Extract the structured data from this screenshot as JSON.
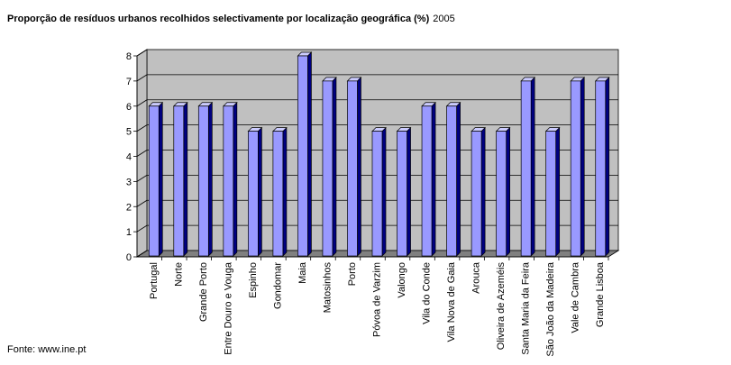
{
  "title": "Proporção de resíduos urbanos recolhidos selectivamente por localização geográfica (%)",
  "year": "2005",
  "source": "Fonte: www.ine.pt",
  "colors": {
    "bar_front": "#9999ff",
    "bar_side": "#000080",
    "bar_top": "#ccccff",
    "wall": "#c0c0c0",
    "floor": "#808080"
  },
  "chart_data": {
    "type": "bar",
    "title": "Proporção de resíduos urbanos recolhidos selectivamente por localização geográfica (%)",
    "subtitle": "2005",
    "xlabel": "",
    "ylabel": "",
    "ylim": [
      0,
      8
    ],
    "yticks": [
      "0",
      "1",
      "2",
      "3",
      "4",
      "5",
      "6",
      "7",
      "8"
    ],
    "grid": true,
    "categories": [
      "Portugal",
      "Norte",
      "Grande Porto",
      "Entre Douro e Vouga",
      "Espinho",
      "Gondomar",
      "Maia",
      "Matosinhos",
      "Porto",
      "Póvoa de Varzim",
      "Valongo",
      "Vila do Conde",
      "Vila Nova de Gaia",
      "Arouca",
      "Oliveira de Azeméis",
      "Santa Maria da Feira",
      "São João da Madeira",
      "Vale de Cambra",
      "Grande Lisboa"
    ],
    "values": [
      6,
      6,
      6,
      6,
      5,
      5,
      8,
      7,
      7,
      5,
      5,
      6,
      6,
      5,
      5,
      7,
      5,
      7,
      7
    ]
  }
}
